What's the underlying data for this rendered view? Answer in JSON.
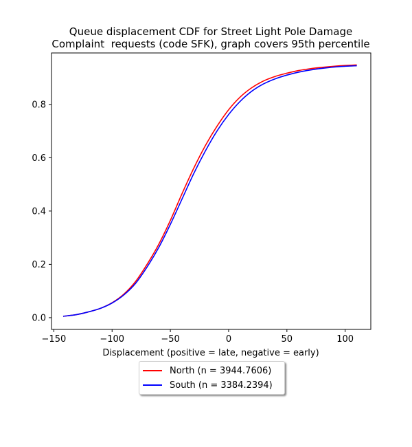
{
  "chart_data": {
    "type": "line",
    "title_lines": [
      "Queue displacement CDF for Street Light Pole Damage",
      "Complaint  requests (code SFK), graph covers 95th percentile"
    ],
    "xlabel": "Displacement (positive = late, negative = early)",
    "ylabel": "",
    "xlim": [
      -152,
      122
    ],
    "ylim": [
      -0.044,
      0.993
    ],
    "x_ticks": [
      -150,
      -100,
      -50,
      0,
      50,
      100
    ],
    "y_ticks": [
      0.0,
      0.2,
      0.4,
      0.6,
      0.8
    ],
    "x_tick_labels": [
      "−150",
      "−100",
      "−50",
      "0",
      "50",
      "100"
    ],
    "y_tick_labels": [
      "0.0",
      "0.2",
      "0.4",
      "0.6",
      "0.8"
    ],
    "grid": false,
    "legend_position": "below plot",
    "series": [
      {
        "name": "North (n = 3944.7606)",
        "color": "#ff0000",
        "x": [
          -142,
          -130,
          -120,
          -110,
          -100,
          -90,
          -80,
          -70,
          -60,
          -50,
          -40,
          -30,
          -20,
          -10,
          0,
          10,
          20,
          30,
          40,
          50,
          60,
          70,
          80,
          90,
          100,
          110
        ],
        "y": [
          0.005,
          0.012,
          0.022,
          0.035,
          0.056,
          0.088,
          0.135,
          0.2,
          0.275,
          0.365,
          0.465,
          0.56,
          0.645,
          0.718,
          0.78,
          0.828,
          0.863,
          0.888,
          0.905,
          0.917,
          0.927,
          0.934,
          0.939,
          0.943,
          0.946,
          0.948
        ]
      },
      {
        "name": "South (n = 3384.2394)",
        "color": "#0000ff",
        "x": [
          -142,
          -130,
          -120,
          -110,
          -100,
          -90,
          -80,
          -70,
          -60,
          -50,
          -40,
          -30,
          -20,
          -10,
          0,
          10,
          20,
          30,
          40,
          50,
          60,
          70,
          80,
          90,
          100,
          110
        ],
        "y": [
          0.005,
          0.012,
          0.022,
          0.035,
          0.055,
          0.085,
          0.128,
          0.19,
          0.263,
          0.35,
          0.445,
          0.54,
          0.625,
          0.7,
          0.762,
          0.812,
          0.85,
          0.877,
          0.896,
          0.91,
          0.921,
          0.929,
          0.935,
          0.94,
          0.943,
          0.945
        ]
      }
    ]
  }
}
